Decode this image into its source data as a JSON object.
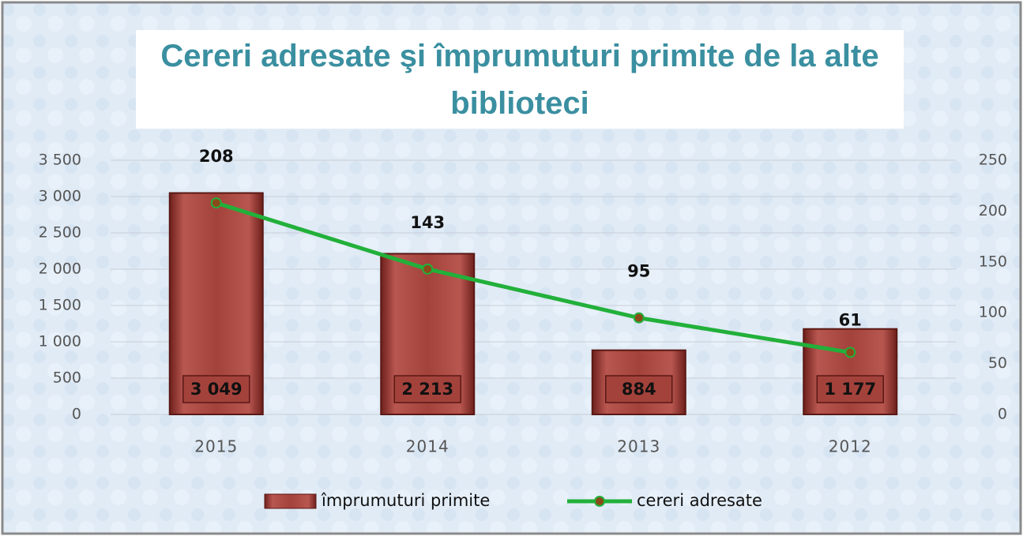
{
  "chart_data": {
    "type": "bar",
    "title": "Cereri adresate şi împrumuturi  primite de la alte biblioteci",
    "categories": [
      "2015",
      "2014",
      "2013",
      "2012"
    ],
    "series": [
      {
        "name": "împrumuturi primite",
        "type": "bar",
        "color": "#a3423b",
        "values": [
          3049,
          2213,
          884,
          1177
        ],
        "value_labels": [
          "3 049",
          "2 213",
          "884",
          "1 177"
        ]
      },
      {
        "name": "cereri adresate",
        "type": "line",
        "axis": "y2",
        "color": "#22b03a",
        "marker_color": "#8b4a1a",
        "values": [
          208,
          143,
          95,
          61
        ]
      }
    ],
    "ylim": [
      0,
      3500
    ],
    "yticks": [
      0,
      500,
      {
        "value": 1000,
        "label": "1 000"
      },
      {
        "value": 1500,
        "label": "1 500"
      },
      {
        "value": 2000,
        "label": "2 000"
      },
      {
        "value": 2500,
        "label": "2 500"
      },
      {
        "value": 3000,
        "label": "3 000"
      },
      {
        "value": 3500,
        "label": "3 500"
      }
    ],
    "y2lim": [
      0,
      250
    ],
    "y2ticks": [
      0,
      50,
      100,
      150,
      200,
      250
    ],
    "grid": true,
    "legend": "bottom"
  }
}
